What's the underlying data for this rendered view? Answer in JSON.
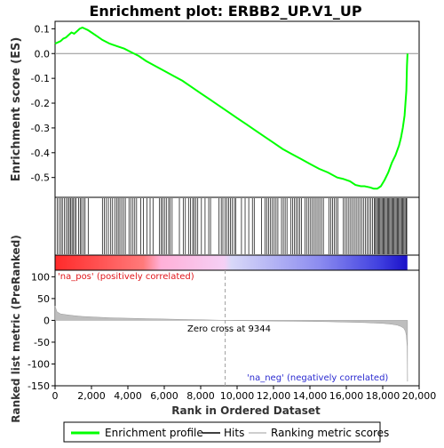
{
  "chart_data": {
    "type": "line",
    "title": "Enrichment plot: ERBB2_UP.V1_UP",
    "xlabel": "Rank in Ordered Dataset",
    "x_ticks": [
      0,
      2000,
      4000,
      6000,
      8000,
      10000,
      12000,
      14000,
      16000,
      18000,
      20000
    ],
    "x_tick_labels": [
      "0",
      "2,000",
      "4,000",
      "6,000",
      "8,000",
      "10,000",
      "12,000",
      "14,000",
      "16,000",
      "18,000",
      "20,000"
    ],
    "xlim": [
      0,
      20000
    ],
    "es_panel": {
      "ylabel": "Enrichment score (ES)",
      "ylim": [
        -0.58,
        0.13
      ],
      "y_ticks": [
        0.1,
        0.0,
        -0.1,
        -0.2,
        -0.3,
        -0.4,
        -0.5
      ],
      "y_tick_labels": [
        "0.1",
        "0.0",
        "-0.1",
        "-0.2",
        "-0.3",
        "-0.4",
        "-0.5"
      ],
      "series": [
        {
          "name": "Enrichment profile",
          "color": "#00ff00",
          "x": [
            0,
            150,
            300,
            450,
            600,
            750,
            900,
            1050,
            1200,
            1350,
            1500,
            1650,
            1800,
            2000,
            2300,
            2600,
            3000,
            3400,
            3800,
            4200,
            4600,
            5000,
            5500,
            6000,
            6500,
            7000,
            7500,
            8000,
            8500,
            9000,
            9500,
            10000,
            10500,
            11000,
            11500,
            12000,
            12500,
            13000,
            13500,
            14000,
            14500,
            15000,
            15500,
            15800,
            16200,
            16500,
            16800,
            17000,
            17300,
            17500,
            17700,
            17900,
            18100,
            18300,
            18500,
            18700,
            18900,
            19000,
            19100,
            19200,
            19250,
            19300,
            19330,
            19360
          ],
          "y": [
            0.04,
            0.045,
            0.05,
            0.06,
            0.065,
            0.075,
            0.085,
            0.08,
            0.09,
            0.1,
            0.105,
            0.1,
            0.095,
            0.085,
            0.07,
            0.055,
            0.04,
            0.03,
            0.02,
            0.005,
            -0.01,
            -0.03,
            -0.05,
            -0.07,
            -0.09,
            -0.11,
            -0.135,
            -0.16,
            -0.185,
            -0.21,
            -0.235,
            -0.26,
            -0.285,
            -0.31,
            -0.335,
            -0.36,
            -0.385,
            -0.405,
            -0.425,
            -0.445,
            -0.465,
            -0.48,
            -0.5,
            -0.505,
            -0.515,
            -0.53,
            -0.535,
            -0.535,
            -0.54,
            -0.545,
            -0.545,
            -0.535,
            -0.51,
            -0.48,
            -0.44,
            -0.41,
            -0.37,
            -0.34,
            -0.3,
            -0.25,
            -0.2,
            -0.15,
            -0.05,
            0.0
          ]
        }
      ]
    },
    "hits": [
      120,
      230,
      330,
      400,
      520,
      610,
      700,
      780,
      850,
      930,
      990,
      1080,
      1160,
      1290,
      1380,
      1460,
      1560,
      1650,
      1820,
      2600,
      2700,
      2820,
      2930,
      3060,
      3160,
      3280,
      3380,
      3470,
      3560,
      3660,
      3760,
      3860,
      4060,
      4160,
      4280,
      4380,
      4480,
      4700,
      4860,
      5040,
      5220,
      5380,
      5740,
      5840,
      5910,
      6010,
      6110,
      6240,
      6320,
      6430,
      6830,
      7040,
      7160,
      7330,
      7440,
      7560,
      7640,
      7740,
      7840,
      8040,
      8240,
      8440,
      8540,
      9010,
      9130,
      9220,
      9340,
      9430,
      9530,
      9640,
      9740,
      9850,
      9930,
      10240,
      10440,
      10640,
      10840,
      10940,
      11340,
      11540,
      11640,
      11740,
      11840,
      11940,
      12040,
      12140,
      12240,
      12440,
      12540,
      12640,
      12740,
      12940,
      13040,
      13140,
      13240,
      13340,
      13440,
      13540,
      13740,
      13840,
      13940,
      14040,
      14140,
      14240,
      14340,
      14440,
      14540,
      14640,
      14740,
      15040,
      15140,
      15240,
      15340,
      15440,
      15540,
      15840,
      15940,
      16040,
      16140,
      16240,
      16340,
      16440,
      16540,
      16640,
      16740,
      16840,
      16940,
      17040,
      17140,
      17240,
      17340,
      17440,
      17540,
      17600,
      17660,
      17720,
      17780,
      17840,
      17900,
      17960,
      18020,
      18080,
      18140,
      18200,
      18260,
      18320,
      18380,
      18440,
      18500,
      18560,
      18620,
      18680,
      18740,
      18800,
      18860,
      18920,
      18980,
      19040,
      19100,
      19160,
      19220,
      19280,
      19320
    ],
    "metric_panel": {
      "ylabel": "Ranked list metric (PreRanked)",
      "ylim": [
        -150,
        115
      ],
      "y_ticks": [
        100,
        50,
        0,
        -50,
        -100,
        -150
      ],
      "y_tick_labels": [
        "100",
        "50",
        "0",
        "-50",
        "-100",
        "-150"
      ],
      "fill_color": "#bebebe",
      "x": [
        0,
        100,
        300,
        600,
        1000,
        1500,
        2000,
        3000,
        4000,
        5000,
        6000,
        7000,
        8000,
        9344,
        10000,
        11000,
        12000,
        13000,
        14000,
        15000,
        16000,
        17000,
        17500,
        18000,
        18500,
        18800,
        19000,
        19150,
        19250,
        19300,
        19340,
        19360
      ],
      "y": [
        33,
        20,
        15,
        13,
        11,
        9,
        8,
        6,
        5,
        4,
        3,
        2,
        1.5,
        0,
        -0.5,
        -1,
        -1.5,
        -2,
        -2.5,
        -3,
        -4,
        -5,
        -6,
        -7,
        -9,
        -11,
        -14,
        -18,
        -25,
        -35,
        -60,
        -140
      ]
    },
    "zero_cross_label": "Zero cross at 9344",
    "zero_cross": 9344,
    "pos_label": "'na_pos' (positively correlated)",
    "neg_label": "'na_neg' (negatively correlated)",
    "legend": [
      {
        "label": "Enrichment profile",
        "color": "#00ff00"
      },
      {
        "label": "Hits",
        "color": "#000000"
      },
      {
        "label": "Ranking metric scores",
        "color": "#bebebe"
      }
    ]
  }
}
